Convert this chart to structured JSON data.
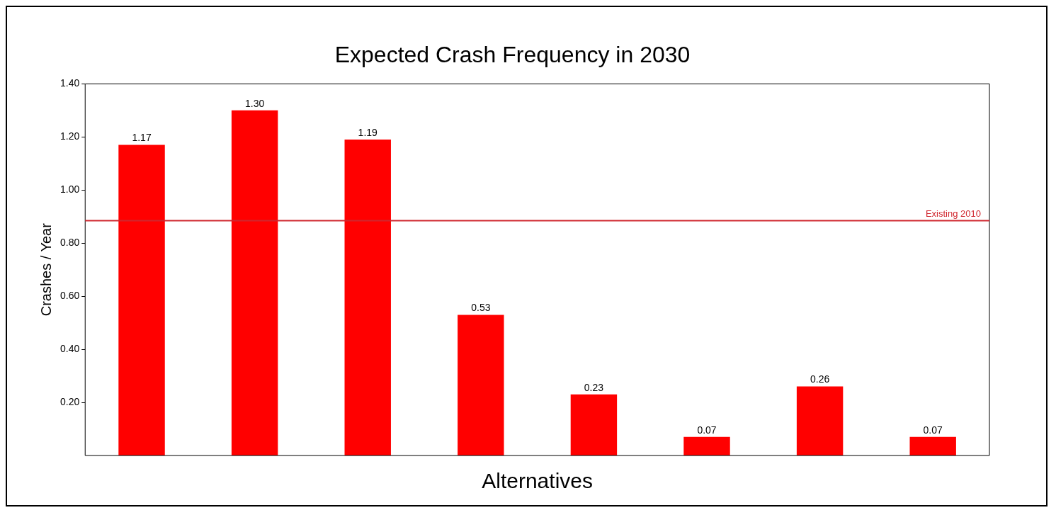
{
  "chart_data": {
    "type": "bar",
    "title": "Expected Crash Frequency in 2030",
    "xlabel": "Alternatives",
    "ylabel": "Crashes / Year",
    "categories": [
      null,
      null,
      null,
      null,
      null,
      null,
      null,
      null
    ],
    "values": [
      1.17,
      1.3,
      1.19,
      0.53,
      0.23,
      0.07,
      0.26,
      0.07
    ],
    "color": "#ff0000",
    "ylim": [
      0,
      1.4
    ],
    "yticks": [
      {
        "value": 0.2,
        "label": "0.20"
      },
      {
        "value": 0.4,
        "label": "0.40"
      },
      {
        "value": 0.6,
        "label": "0.60"
      },
      {
        "value": 0.8,
        "label": "0.80"
      },
      {
        "value": 1.0,
        "label": "1.00"
      },
      {
        "value": 1.2,
        "label": "1.20"
      },
      {
        "value": 1.4,
        "label": "1.40"
      }
    ],
    "ref_lines": [
      {
        "axis": "y",
        "value": 0.885,
        "label": "Existing 2010",
        "color": "#d0262e"
      }
    ],
    "value_labels": [
      "1.17",
      "1.30",
      "1.19",
      "0.53",
      "0.23",
      "0.07",
      "0.26",
      "0.07"
    ],
    "grid": false,
    "legend": false
  }
}
